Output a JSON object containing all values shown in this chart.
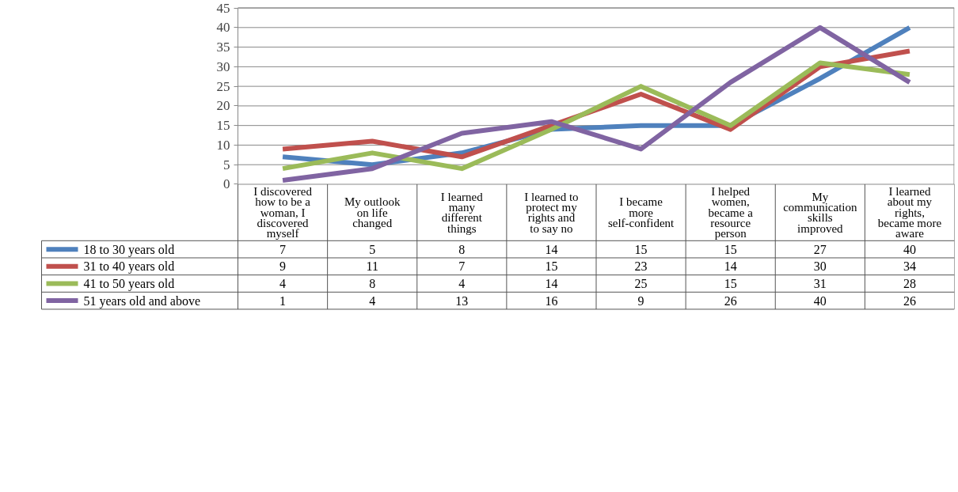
{
  "chart_data": {
    "type": "line",
    "categories": [
      "I discovered how to be a woman, I discovered myself",
      "My outlook on life changed",
      "I learned many different things",
      "I learned to protect my rights and to say no",
      "I became more self-confident",
      "I helped women, became a resource person",
      "My communication skills improved",
      "I learned about my rights, became more aware"
    ],
    "series": [
      {
        "name": "18 to 30 years old",
        "color": "#4f81bd",
        "values": [
          7,
          5,
          8,
          14,
          15,
          15,
          27,
          40
        ]
      },
      {
        "name": "31 to 40 years old",
        "color": "#c0504d",
        "values": [
          9,
          11,
          7,
          15,
          23,
          14,
          30,
          34
        ]
      },
      {
        "name": "41 to 50 years old",
        "color": "#9bbb59",
        "values": [
          4,
          8,
          4,
          14,
          25,
          15,
          31,
          28
        ]
      },
      {
        "name": "51 years old and above",
        "color": "#8064a2",
        "values": [
          1,
          4,
          13,
          16,
          9,
          26,
          40,
          26
        ]
      }
    ],
    "ylim": [
      0,
      45
    ],
    "yticks": [
      0,
      5,
      10,
      15,
      20,
      25,
      30,
      35,
      40,
      45
    ],
    "grid": "y",
    "legend": "bottom",
    "data_labels": true,
    "marker": "none",
    "line_style": "solid"
  }
}
